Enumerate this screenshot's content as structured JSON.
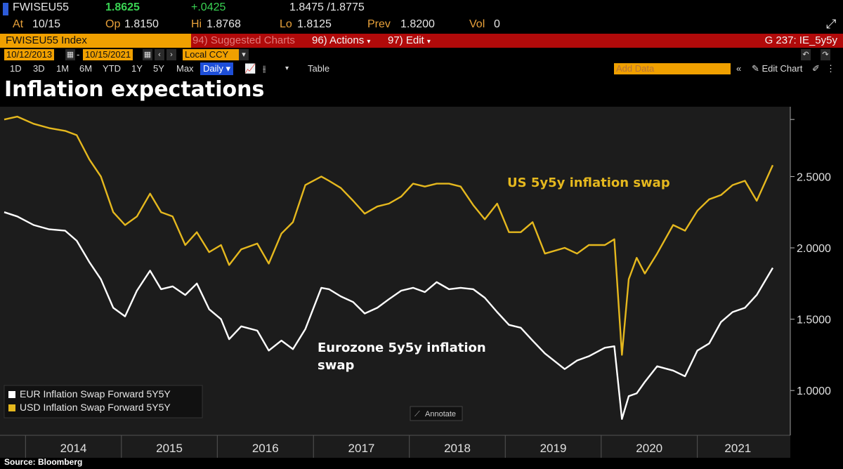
{
  "quote": {
    "ticker": "FWISEU55",
    "last": "1.8625",
    "change": "+.0425",
    "bid_ask": "1.8475 /1.8775",
    "at_label": "At",
    "at_value": "10/15",
    "op_label": "Op",
    "op_value": "1.8150",
    "hi_label": "Hi",
    "hi_value": "1.8768",
    "lo_label": "Lo",
    "lo_value": "1.8125",
    "prev_label": "Prev",
    "prev_value": "1.8200",
    "vol_label": "Vol",
    "vol_value": "0"
  },
  "menu": {
    "security": "FWISEU55 Index",
    "suggested": "94) Suggested Charts",
    "actions": "96) Actions",
    "edit": "97) Edit",
    "chart_id": "G 237: IE_5y5y"
  },
  "range": {
    "start": "10/12/2013",
    "end": "10/15/2021",
    "currency": "Local CCY"
  },
  "toolbar": {
    "periods": [
      "1D",
      "3D",
      "1M",
      "6M",
      "YTD",
      "1Y",
      "5Y",
      "Max"
    ],
    "frequency": "Daily",
    "table": "Table",
    "add_data_placeholder": "Add Data",
    "edit_chart": "Edit Chart"
  },
  "headline": "Inflation expectations",
  "source": "Source: Bloomberg",
  "colors": {
    "background": "#000000",
    "plot_bg": "#1c1c1c",
    "eur_series": "#ffffff",
    "usd_series": "#e5b81e",
    "header_orange": "#f0a000",
    "header_red": "#b10a0a"
  },
  "chart_data": {
    "type": "line",
    "title": "Inflation expectations",
    "x_type": "date",
    "x_range": [
      "2013-10-12",
      "2021-10-15"
    ],
    "x_tick_labels": [
      "2014",
      "2015",
      "2016",
      "2017",
      "2018",
      "2019",
      "2020",
      "2021"
    ],
    "y_range": [
      0.75,
      2.95
    ],
    "y_ticks": [
      "1.0000",
      "1.5000",
      "2.0000",
      "2.5000"
    ],
    "grid": false,
    "legend_position": "bottom-left",
    "annotate_label": "Annotate",
    "annotations": [
      {
        "text": "US 5y5y inflation swap",
        "series": "USD Inflation Swap Forward 5Y5Y"
      },
      {
        "text": "Eurozone 5y5y inflation swap",
        "series": "EUR Inflation Swap Forward 5Y5Y"
      }
    ],
    "series": [
      {
        "name": "EUR Inflation Swap Forward 5Y5Y",
        "color": "#ffffff",
        "x": [
          "2013-10-12",
          "2013-12-01",
          "2014-02-01",
          "2014-04-01",
          "2014-06-01",
          "2014-07-15",
          "2014-09-01",
          "2014-10-15",
          "2014-12-01",
          "2015-01-15",
          "2015-03-01",
          "2015-04-20",
          "2015-06-01",
          "2015-07-15",
          "2015-09-01",
          "2015-10-15",
          "2015-12-01",
          "2016-01-15",
          "2016-02-15",
          "2016-04-01",
          "2016-06-01",
          "2016-07-15",
          "2016-09-01",
          "2016-10-15",
          "2016-12-01",
          "2017-01-31",
          "2017-03-01",
          "2017-04-15",
          "2017-06-01",
          "2017-07-15",
          "2017-09-01",
          "2017-10-15",
          "2017-12-01",
          "2018-01-15",
          "2018-03-01",
          "2018-04-15",
          "2018-06-01",
          "2018-07-15",
          "2018-09-01",
          "2018-10-15",
          "2018-12-01",
          "2019-01-15",
          "2019-03-01",
          "2019-04-15",
          "2019-06-01",
          "2019-08-15",
          "2019-10-01",
          "2019-11-15",
          "2020-01-15",
          "2020-02-20",
          "2020-03-20",
          "2020-04-15",
          "2020-05-15",
          "2020-06-15",
          "2020-08-01",
          "2020-10-01",
          "2020-11-15",
          "2021-01-01",
          "2021-02-15",
          "2021-04-01",
          "2021-05-15",
          "2021-07-01",
          "2021-08-15",
          "2021-10-15"
        ],
        "values": [
          2.25,
          2.22,
          2.16,
          2.13,
          2.12,
          2.05,
          1.9,
          1.78,
          1.58,
          1.52,
          1.7,
          1.84,
          1.71,
          1.73,
          1.67,
          1.75,
          1.57,
          1.5,
          1.36,
          1.45,
          1.42,
          1.28,
          1.35,
          1.29,
          1.43,
          1.72,
          1.71,
          1.66,
          1.62,
          1.54,
          1.58,
          1.64,
          1.7,
          1.72,
          1.69,
          1.76,
          1.71,
          1.72,
          1.71,
          1.65,
          1.55,
          1.46,
          1.44,
          1.35,
          1.26,
          1.15,
          1.21,
          1.24,
          1.3,
          1.31,
          0.8,
          0.96,
          0.98,
          1.06,
          1.17,
          1.14,
          1.1,
          1.28,
          1.33,
          1.48,
          1.55,
          1.58,
          1.67,
          1.86
        ]
      },
      {
        "name": "USD Inflation Swap Forward 5Y5Y",
        "color": "#e5b81e",
        "x": [
          "2013-10-12",
          "2013-12-01",
          "2014-02-01",
          "2014-04-01",
          "2014-06-01",
          "2014-07-15",
          "2014-09-01",
          "2014-10-15",
          "2014-12-01",
          "2015-01-15",
          "2015-03-01",
          "2015-04-20",
          "2015-06-01",
          "2015-07-15",
          "2015-09-01",
          "2015-10-15",
          "2015-12-01",
          "2016-01-15",
          "2016-02-15",
          "2016-04-01",
          "2016-06-01",
          "2016-07-15",
          "2016-09-01",
          "2016-10-15",
          "2016-12-01",
          "2017-01-31",
          "2017-03-01",
          "2017-04-15",
          "2017-06-01",
          "2017-07-15",
          "2017-09-01",
          "2017-10-15",
          "2017-12-01",
          "2018-01-15",
          "2018-03-01",
          "2018-04-15",
          "2018-06-01",
          "2018-07-15",
          "2018-09-01",
          "2018-10-15",
          "2018-12-01",
          "2019-01-15",
          "2019-03-01",
          "2019-04-15",
          "2019-06-01",
          "2019-08-15",
          "2019-10-01",
          "2019-11-15",
          "2020-01-15",
          "2020-02-20",
          "2020-03-20",
          "2020-04-15",
          "2020-05-15",
          "2020-06-15",
          "2020-08-01",
          "2020-10-01",
          "2020-11-15",
          "2021-01-01",
          "2021-02-15",
          "2021-04-01",
          "2021-05-15",
          "2021-07-01",
          "2021-08-15",
          "2021-10-15"
        ],
        "values": [
          2.9,
          2.92,
          2.87,
          2.84,
          2.82,
          2.79,
          2.62,
          2.5,
          2.25,
          2.16,
          2.22,
          2.38,
          2.25,
          2.22,
          2.02,
          2.11,
          1.97,
          2.02,
          1.88,
          1.99,
          2.03,
          1.89,
          2.1,
          2.18,
          2.44,
          2.5,
          2.47,
          2.42,
          2.33,
          2.24,
          2.29,
          2.31,
          2.36,
          2.45,
          2.43,
          2.45,
          2.45,
          2.43,
          2.3,
          2.2,
          2.31,
          2.11,
          2.11,
          2.18,
          1.96,
          2.0,
          1.96,
          2.02,
          2.02,
          2.06,
          1.25,
          1.78,
          1.93,
          1.82,
          1.96,
          2.16,
          2.12,
          2.26,
          2.34,
          2.37,
          2.44,
          2.47,
          2.33,
          2.58
        ]
      }
    ]
  }
}
